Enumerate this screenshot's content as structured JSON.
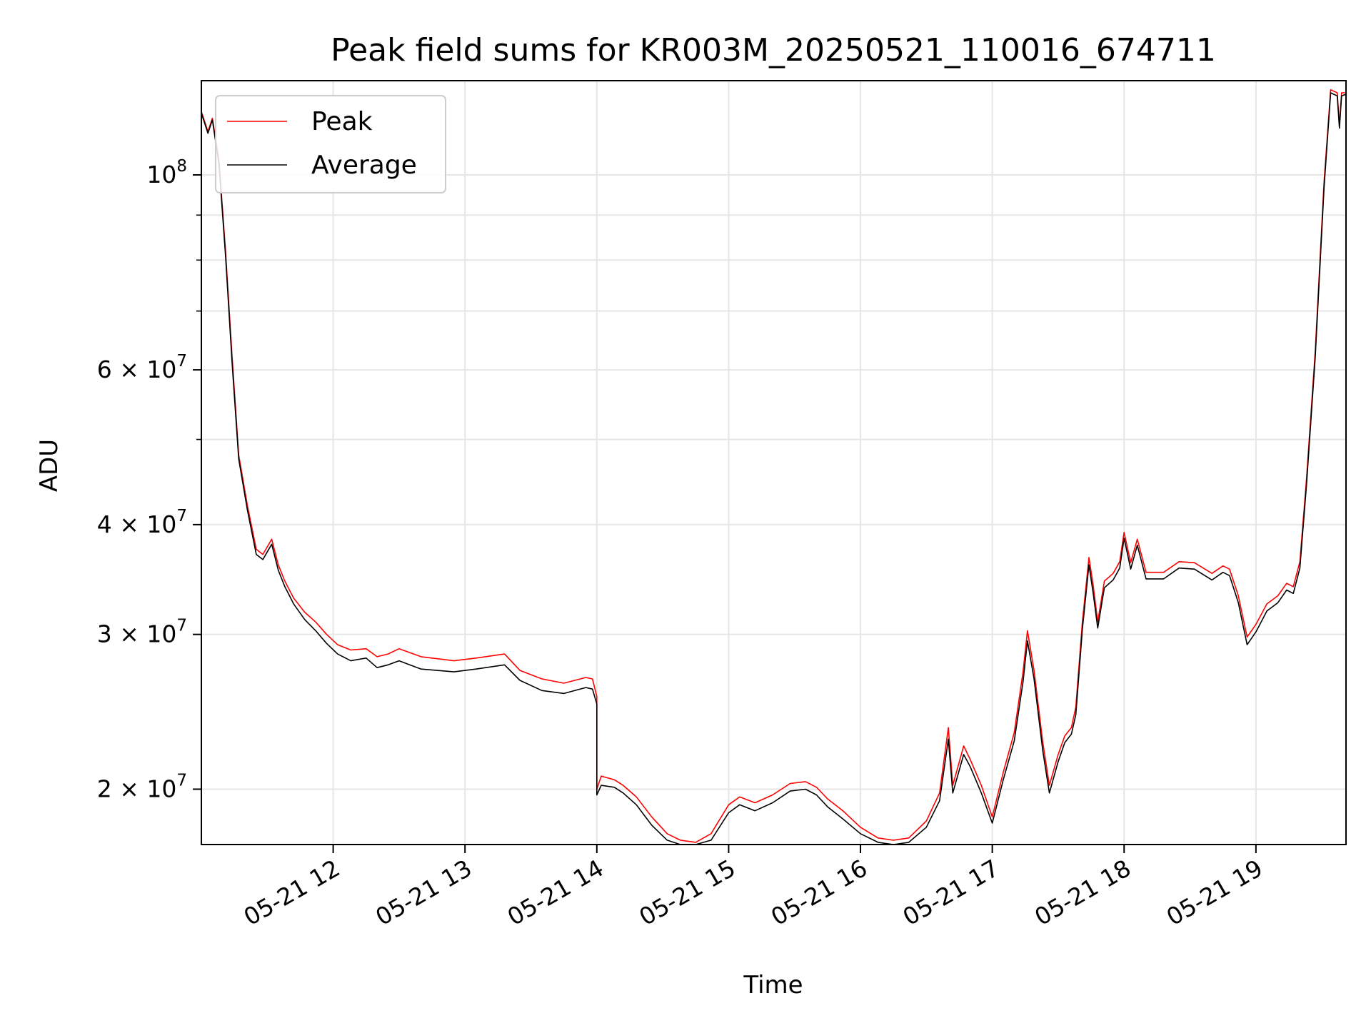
{
  "chart_data": {
    "type": "line",
    "title": "Peak field sums for KR003M_20250521_110016_674711",
    "xlabel": "Time",
    "ylabel": "ADU",
    "y_scale": "log",
    "x_range": [
      "2025-05-21 11:00",
      "2025-05-21 19:41"
    ],
    "y_range": [
      17300000,
      128000000
    ],
    "grid": true,
    "legend_position": "top-left",
    "x_ticks": [
      {
        "t": "2025-05-21 12:00",
        "label": "05-21 12"
      },
      {
        "t": "2025-05-21 13:00",
        "label": "05-21 13"
      },
      {
        "t": "2025-05-21 14:00",
        "label": "05-21 14"
      },
      {
        "t": "2025-05-21 15:00",
        "label": "05-21 15"
      },
      {
        "t": "2025-05-21 16:00",
        "label": "05-21 16"
      },
      {
        "t": "2025-05-21 17:00",
        "label": "05-21 17"
      },
      {
        "t": "2025-05-21 18:00",
        "label": "05-21 18"
      },
      {
        "t": "2025-05-21 19:00",
        "label": "05-21 19"
      }
    ],
    "y_ticks": [
      {
        "value": 20000000,
        "mant": "2",
        "exp": "7"
      },
      {
        "value": 30000000,
        "mant": "3",
        "exp": "7"
      },
      {
        "value": 40000000,
        "mant": "4",
        "exp": "7"
      },
      {
        "value": 60000000,
        "mant": "6",
        "exp": "7"
      },
      {
        "value": 100000000,
        "mant": "",
        "exp": "8"
      }
    ],
    "y_minor_ticks": [
      50000000,
      70000000,
      80000000,
      90000000
    ],
    "series": [
      {
        "name": "Peak",
        "color": "#ff0000",
        "points": [
          [
            "2025-05-21 11:00",
            118000000
          ],
          [
            "2025-05-21 11:01",
            116000000
          ],
          [
            "2025-05-21 11:03",
            112000000
          ],
          [
            "2025-05-21 11:05",
            116000000
          ],
          [
            "2025-05-21 11:08",
            104000000
          ],
          [
            "2025-05-21 11:11",
            82000000
          ],
          [
            "2025-05-21 11:14",
            62000000
          ],
          [
            "2025-05-21 11:17",
            48000000
          ],
          [
            "2025-05-21 11:21",
            42000000
          ],
          [
            "2025-05-21 11:25",
            37500000
          ],
          [
            "2025-05-21 11:28",
            37000000
          ],
          [
            "2025-05-21 11:32",
            38500000
          ],
          [
            "2025-05-21 11:35",
            36000000
          ],
          [
            "2025-05-21 11:38",
            34500000
          ],
          [
            "2025-05-21 11:42",
            33000000
          ],
          [
            "2025-05-21 11:47",
            31800000
          ],
          [
            "2025-05-21 11:52",
            31000000
          ],
          [
            "2025-05-21 11:57",
            30000000
          ],
          [
            "2025-05-21 12:02",
            29200000
          ],
          [
            "2025-05-21 12:08",
            28800000
          ],
          [
            "2025-05-21 12:15",
            28900000
          ],
          [
            "2025-05-21 12:20",
            28300000
          ],
          [
            "2025-05-21 12:25",
            28500000
          ],
          [
            "2025-05-21 12:30",
            28900000
          ],
          [
            "2025-05-21 12:40",
            28300000
          ],
          [
            "2025-05-21 12:55",
            28000000
          ],
          [
            "2025-05-21 13:05",
            28200000
          ],
          [
            "2025-05-21 13:18",
            28500000
          ],
          [
            "2025-05-21 13:25",
            27300000
          ],
          [
            "2025-05-21 13:35",
            26700000
          ],
          [
            "2025-05-21 13:45",
            26400000
          ],
          [
            "2025-05-21 13:55",
            26800000
          ],
          [
            "2025-05-21 13:58",
            26700000
          ],
          [
            "2025-05-21 14:00",
            25500000
          ],
          [
            "2025-05-21 14:00",
            20000000
          ],
          [
            "2025-05-21 14:02",
            20700000
          ],
          [
            "2025-05-21 14:08",
            20500000
          ],
          [
            "2025-05-21 14:12",
            20200000
          ],
          [
            "2025-05-21 14:18",
            19600000
          ],
          [
            "2025-05-21 14:25",
            18600000
          ],
          [
            "2025-05-21 14:32",
            17800000
          ],
          [
            "2025-05-21 14:38",
            17500000
          ],
          [
            "2025-05-21 14:45",
            17400000
          ],
          [
            "2025-05-21 14:52",
            17800000
          ],
          [
            "2025-05-21 15:00",
            19200000
          ],
          [
            "2025-05-21 15:05",
            19600000
          ],
          [
            "2025-05-21 15:12",
            19300000
          ],
          [
            "2025-05-21 15:20",
            19700000
          ],
          [
            "2025-05-21 15:28",
            20300000
          ],
          [
            "2025-05-21 15:35",
            20400000
          ],
          [
            "2025-05-21 15:40",
            20100000
          ],
          [
            "2025-05-21 15:45",
            19500000
          ],
          [
            "2025-05-21 15:52",
            18900000
          ],
          [
            "2025-05-21 16:00",
            18100000
          ],
          [
            "2025-05-21 16:08",
            17600000
          ],
          [
            "2025-05-21 16:15",
            17500000
          ],
          [
            "2025-05-21 16:22",
            17600000
          ],
          [
            "2025-05-21 16:30",
            18400000
          ],
          [
            "2025-05-21 16:36",
            19800000
          ],
          [
            "2025-05-21 16:40",
            23500000
          ],
          [
            "2025-05-21 16:42",
            20200000
          ],
          [
            "2025-05-21 16:47",
            22400000
          ],
          [
            "2025-05-21 16:50",
            21600000
          ],
          [
            "2025-05-21 16:55",
            20200000
          ],
          [
            "2025-05-21 17:00",
            18600000
          ],
          [
            "2025-05-21 17:05",
            20900000
          ],
          [
            "2025-05-21 17:10",
            23200000
          ],
          [
            "2025-05-21 17:14",
            27200000
          ],
          [
            "2025-05-21 17:16",
            30300000
          ],
          [
            "2025-05-21 17:19",
            27300000
          ],
          [
            "2025-05-21 17:23",
            22600000
          ],
          [
            "2025-05-21 17:26",
            20200000
          ],
          [
            "2025-05-21 17:30",
            21900000
          ],
          [
            "2025-05-21 17:33",
            23000000
          ],
          [
            "2025-05-21 17:36",
            23500000
          ],
          [
            "2025-05-21 17:38",
            24800000
          ],
          [
            "2025-05-21 17:41",
            31000000
          ],
          [
            "2025-05-21 17:44",
            36700000
          ],
          [
            "2025-05-21 17:46",
            34000000
          ],
          [
            "2025-05-21 17:48",
            31000000
          ],
          [
            "2025-05-21 17:51",
            34500000
          ],
          [
            "2025-05-21 17:55",
            35200000
          ],
          [
            "2025-05-21 17:58",
            36300000
          ],
          [
            "2025-05-21 18:00",
            39200000
          ],
          [
            "2025-05-21 18:03",
            36200000
          ],
          [
            "2025-05-21 18:06",
            38500000
          ],
          [
            "2025-05-21 18:10",
            35300000
          ],
          [
            "2025-05-21 18:18",
            35300000
          ],
          [
            "2025-05-21 18:25",
            36300000
          ],
          [
            "2025-05-21 18:32",
            36200000
          ],
          [
            "2025-05-21 18:40",
            35200000
          ],
          [
            "2025-05-21 18:45",
            35900000
          ],
          [
            "2025-05-21 18:48",
            35600000
          ],
          [
            "2025-05-21 18:52",
            33200000
          ],
          [
            "2025-05-21 18:56",
            29800000
          ],
          [
            "2025-05-21 19:00",
            30800000
          ],
          [
            "2025-05-21 19:05",
            32500000
          ],
          [
            "2025-05-21 19:10",
            33200000
          ],
          [
            "2025-05-21 19:14",
            34300000
          ],
          [
            "2025-05-21 19:17",
            34000000
          ],
          [
            "2025-05-21 19:20",
            36300000
          ],
          [
            "2025-05-21 19:23",
            45000000
          ],
          [
            "2025-05-21 19:27",
            63000000
          ],
          [
            "2025-05-21 19:31",
            98000000
          ],
          [
            "2025-05-21 19:34",
            125000000
          ],
          [
            "2025-05-21 19:37",
            124000000
          ],
          [
            "2025-05-21 19:38",
            114000000
          ],
          [
            "2025-05-21 19:39",
            124000000
          ],
          [
            "2025-05-21 19:41",
            124000000
          ]
        ]
      },
      {
        "name": "Average",
        "color": "#000000",
        "points": [
          [
            "2025-05-21 11:00",
            117500000
          ],
          [
            "2025-05-21 11:01",
            115500000
          ],
          [
            "2025-05-21 11:03",
            111500000
          ],
          [
            "2025-05-21 11:05",
            115500000
          ],
          [
            "2025-05-21 11:08",
            103000000
          ],
          [
            "2025-05-21 11:11",
            81000000
          ],
          [
            "2025-05-21 11:14",
            61000000
          ],
          [
            "2025-05-21 11:17",
            47500000
          ],
          [
            "2025-05-21 11:21",
            41500000
          ],
          [
            "2025-05-21 11:25",
            37000000
          ],
          [
            "2025-05-21 11:28",
            36500000
          ],
          [
            "2025-05-21 11:32",
            38000000
          ],
          [
            "2025-05-21 11:35",
            35500000
          ],
          [
            "2025-05-21 11:38",
            34000000
          ],
          [
            "2025-05-21 11:42",
            32500000
          ],
          [
            "2025-05-21 11:47",
            31200000
          ],
          [
            "2025-05-21 11:52",
            30300000
          ],
          [
            "2025-05-21 11:57",
            29300000
          ],
          [
            "2025-05-21 12:02",
            28500000
          ],
          [
            "2025-05-21 12:08",
            28000000
          ],
          [
            "2025-05-21 12:15",
            28200000
          ],
          [
            "2025-05-21 12:20",
            27500000
          ],
          [
            "2025-05-21 12:25",
            27700000
          ],
          [
            "2025-05-21 12:30",
            28000000
          ],
          [
            "2025-05-21 12:40",
            27400000
          ],
          [
            "2025-05-21 12:55",
            27200000
          ],
          [
            "2025-05-21 13:05",
            27400000
          ],
          [
            "2025-05-21 13:18",
            27700000
          ],
          [
            "2025-05-21 13:25",
            26600000
          ],
          [
            "2025-05-21 13:35",
            25900000
          ],
          [
            "2025-05-21 13:45",
            25700000
          ],
          [
            "2025-05-21 13:55",
            26100000
          ],
          [
            "2025-05-21 13:58",
            26000000
          ],
          [
            "2025-05-21 14:00",
            25000000
          ],
          [
            "2025-05-21 14:00",
            19700000
          ],
          [
            "2025-05-21 14:02",
            20200000
          ],
          [
            "2025-05-21 14:08",
            20100000
          ],
          [
            "2025-05-21 14:12",
            19800000
          ],
          [
            "2025-05-21 14:18",
            19200000
          ],
          [
            "2025-05-21 14:25",
            18200000
          ],
          [
            "2025-05-21 14:32",
            17500000
          ],
          [
            "2025-05-21 14:38",
            17300000
          ],
          [
            "2025-05-21 14:45",
            17300000
          ],
          [
            "2025-05-21 14:52",
            17500000
          ],
          [
            "2025-05-21 15:00",
            18800000
          ],
          [
            "2025-05-21 15:05",
            19200000
          ],
          [
            "2025-05-21 15:12",
            18900000
          ],
          [
            "2025-05-21 15:20",
            19300000
          ],
          [
            "2025-05-21 15:28",
            19900000
          ],
          [
            "2025-05-21 15:35",
            20000000
          ],
          [
            "2025-05-21 15:40",
            19700000
          ],
          [
            "2025-05-21 15:45",
            19100000
          ],
          [
            "2025-05-21 15:52",
            18500000
          ],
          [
            "2025-05-21 16:00",
            17800000
          ],
          [
            "2025-05-21 16:08",
            17400000
          ],
          [
            "2025-05-21 16:15",
            17300000
          ],
          [
            "2025-05-21 16:22",
            17400000
          ],
          [
            "2025-05-21 16:30",
            18100000
          ],
          [
            "2025-05-21 16:36",
            19400000
          ],
          [
            "2025-05-21 16:40",
            22800000
          ],
          [
            "2025-05-21 16:42",
            19800000
          ],
          [
            "2025-05-21 16:47",
            21900000
          ],
          [
            "2025-05-21 16:50",
            21200000
          ],
          [
            "2025-05-21 16:55",
            19800000
          ],
          [
            "2025-05-21 17:00",
            18300000
          ],
          [
            "2025-05-21 17:05",
            20500000
          ],
          [
            "2025-05-21 17:10",
            22700000
          ],
          [
            "2025-05-21 17:14",
            26500000
          ],
          [
            "2025-05-21 17:16",
            29500000
          ],
          [
            "2025-05-21 17:19",
            26700000
          ],
          [
            "2025-05-21 17:23",
            22100000
          ],
          [
            "2025-05-21 17:26",
            19800000
          ],
          [
            "2025-05-21 17:30",
            21500000
          ],
          [
            "2025-05-21 17:33",
            22600000
          ],
          [
            "2025-05-21 17:36",
            23100000
          ],
          [
            "2025-05-21 17:38",
            24300000
          ],
          [
            "2025-05-21 17:41",
            30400000
          ],
          [
            "2025-05-21 17:44",
            36000000
          ],
          [
            "2025-05-21 17:46",
            33300000
          ],
          [
            "2025-05-21 17:48",
            30500000
          ],
          [
            "2025-05-21 17:51",
            33900000
          ],
          [
            "2025-05-21 17:55",
            34600000
          ],
          [
            "2025-05-21 17:58",
            35700000
          ],
          [
            "2025-05-21 18:00",
            38600000
          ],
          [
            "2025-05-21 18:03",
            35600000
          ],
          [
            "2025-05-21 18:06",
            37900000
          ],
          [
            "2025-05-21 18:10",
            34700000
          ],
          [
            "2025-05-21 18:18",
            34700000
          ],
          [
            "2025-05-21 18:25",
            35700000
          ],
          [
            "2025-05-21 18:32",
            35600000
          ],
          [
            "2025-05-21 18:40",
            34600000
          ],
          [
            "2025-05-21 18:45",
            35300000
          ],
          [
            "2025-05-21 18:48",
            35000000
          ],
          [
            "2025-05-21 18:52",
            32600000
          ],
          [
            "2025-05-21 18:56",
            29200000
          ],
          [
            "2025-05-21 19:00",
            30200000
          ],
          [
            "2025-05-21 19:05",
            31900000
          ],
          [
            "2025-05-21 19:10",
            32600000
          ],
          [
            "2025-05-21 19:14",
            33700000
          ],
          [
            "2025-05-21 19:17",
            33400000
          ],
          [
            "2025-05-21 19:20",
            35700000
          ],
          [
            "2025-05-21 19:23",
            44300000
          ],
          [
            "2025-05-21 19:27",
            62000000
          ],
          [
            "2025-05-21 19:31",
            96500000
          ],
          [
            "2025-05-21 19:34",
            124000000
          ],
          [
            "2025-05-21 19:37",
            123000000
          ],
          [
            "2025-05-21 19:38",
            113000000
          ],
          [
            "2025-05-21 19:39",
            123000000
          ],
          [
            "2025-05-21 19:41",
            123500000
          ]
        ]
      }
    ]
  }
}
